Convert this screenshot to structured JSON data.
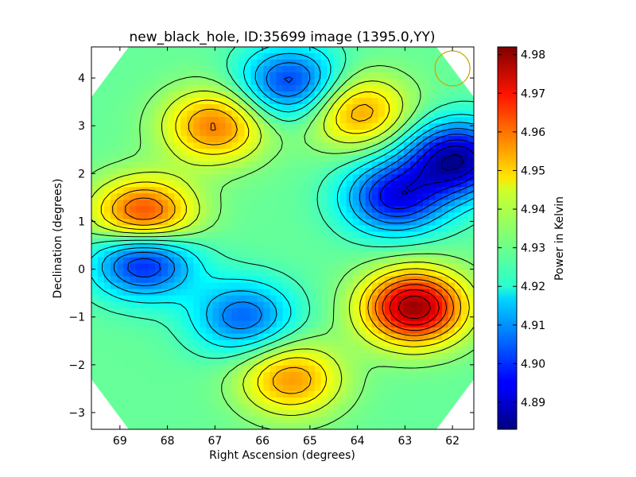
{
  "chart_data": {
    "type": "heatmap",
    "title": "new_black_hole, ID:35699 image (1395.0,YY)",
    "xlabel": "Right Ascension (degrees)",
    "ylabel": "Declination (degrees)",
    "colorbar_label": "Power in Kelvin",
    "colormap": "jet",
    "x_ticks": [
      69,
      68,
      67,
      66,
      65,
      64,
      63,
      62
    ],
    "y_ticks": [
      -3,
      -2,
      -1,
      0,
      1,
      2,
      3,
      4
    ],
    "colorbar_ticks": [
      4.89,
      4.9,
      4.91,
      4.92,
      4.93,
      4.94,
      4.95,
      4.96,
      4.97,
      4.98
    ],
    "xlim": [
      69.6,
      61.55
    ],
    "ylim": [
      -3.35,
      4.65
    ],
    "clim": [
      4.883,
      4.982
    ],
    "contours": "black",
    "beam_marker": {
      "ra": 62.0,
      "dec": 4.2,
      "color": "#c8a800"
    },
    "features": [
      {
        "type": "max",
        "ra": 62.8,
        "dec": -0.8,
        "value": 4.98
      },
      {
        "type": "max",
        "ra": 68.5,
        "dec": 1.1,
        "value": 4.968
      },
      {
        "type": "max",
        "ra": 67.0,
        "dec": 3.0,
        "value": 4.958
      },
      {
        "type": "max",
        "ra": 65.4,
        "dec": -2.3,
        "value": 4.955
      },
      {
        "type": "max",
        "ra": 64.0,
        "dec": 3.3,
        "value": 4.955
      },
      {
        "type": "min",
        "ra": 61.9,
        "dec": 2.3,
        "value": 4.886
      },
      {
        "type": "min",
        "ra": 68.5,
        "dec": 0.2,
        "value": 4.893
      },
      {
        "type": "min",
        "ra": 65.4,
        "dec": 3.9,
        "value": 4.9
      },
      {
        "type": "min",
        "ra": 66.4,
        "dec": -1.0,
        "value": 4.905
      },
      {
        "type": "min",
        "ra": 63.2,
        "dec": 1.5,
        "value": 4.895
      }
    ]
  }
}
